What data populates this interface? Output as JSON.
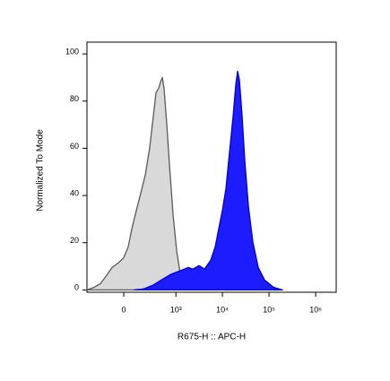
{
  "chart_data": {
    "type": "histogram-overlay",
    "xlabel": "R675-H :: APC-H",
    "ylabel": "Normalized To Mode",
    "xscale": "biexponential",
    "xlim": [
      -459,
      2760000
    ],
    "ylim": [
      -1,
      105
    ],
    "xticks": [
      0,
      {
        "value": 1000,
        "label": "10³"
      },
      {
        "value": 10000,
        "label": "10⁴"
      },
      {
        "value": 100000,
        "label": "10⁵"
      },
      {
        "value": 1000000,
        "label": "10⁶"
      }
    ],
    "yticks": [
      0,
      20,
      40,
      60,
      80,
      100
    ],
    "series": [
      {
        "color": "#d9d9d9",
        "line_color": "#5a5a5a",
        "x": [
          -459,
          -312,
          -217,
          -154,
          -93,
          -41,
          0,
          34,
          63,
          101,
          144,
          196,
          254,
          312,
          361,
          416,
          459,
          503,
          551,
          632,
          724,
          868,
          1039,
          1241,
          1484,
          1854
        ],
        "values": [
          0,
          1.1,
          2.7,
          5.7,
          9.5,
          11.5,
          13.7,
          18.3,
          26,
          33.6,
          41,
          48.9,
          60.3,
          73.7,
          83.6,
          85.5,
          88.2,
          90,
          85,
          70,
          52.7,
          31.7,
          16.4,
          6.9,
          1.9,
          0
        ]
      },
      {
        "color": "#1c1cff",
        "line_color": "#0000c8",
        "x": [
          85,
          174,
          298,
          479,
          757,
          1186,
          1854,
          2313,
          3152,
          4116,
          5615,
          7007,
          8354,
          9976,
          11903,
          14214,
          16968,
          19370,
          21175,
          23134,
          26423,
          30187,
          36032,
          44982,
          58676,
          80019,
          124695,
          194310
        ],
        "values": [
          0,
          0.4,
          1.9,
          4.2,
          6.5,
          8,
          9.5,
          8.8,
          10.3,
          8.8,
          12.6,
          18.3,
          26,
          33.6,
          43,
          58.4,
          73.7,
          87,
          92.7,
          89,
          73.7,
          54.6,
          35.5,
          20.2,
          9.5,
          4.2,
          1.1,
          0
        ]
      }
    ]
  }
}
